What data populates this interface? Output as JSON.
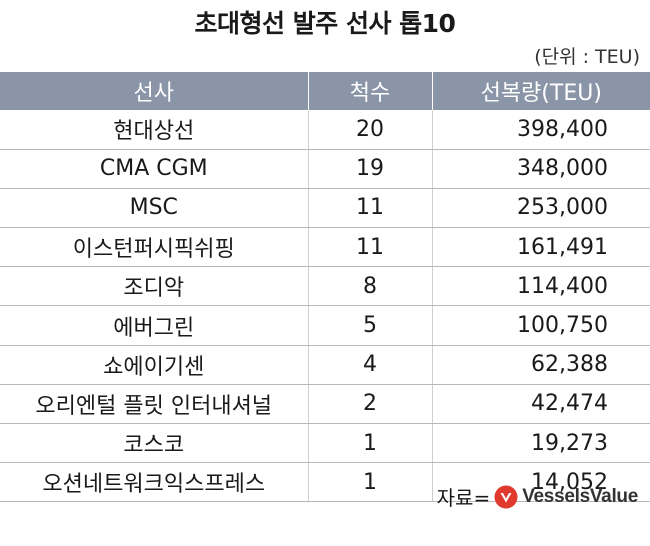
{
  "title": "초대형선 발주 선사 톱10",
  "unit": "(단위 : TEU)",
  "table": {
    "headers": [
      "선사",
      "척수",
      "선복량(TEU)"
    ],
    "rows": [
      [
        "현대상선",
        "20",
        "398,400"
      ],
      [
        "CMA CGM",
        "19",
        "348,000"
      ],
      [
        "MSC",
        "11",
        "253,000"
      ],
      [
        "이스턴퍼시픽쉬핑",
        "11",
        "161,491"
      ],
      [
        "조디악",
        "8",
        "114,400"
      ],
      [
        "에버그린",
        "5",
        "100,750"
      ],
      [
        "쇼에이기센",
        "4",
        "62,388"
      ],
      [
        "오리엔털 플릿 인터내셔널",
        "2",
        "42,474"
      ],
      [
        "코스코",
        "1",
        "19,273"
      ],
      [
        "오션네트워크익스프레스",
        "1",
        "14,052"
      ]
    ]
  },
  "source": {
    "label": "자료=",
    "brand": "VesselsValue",
    "brand_icon": "vesselsvalue-logo-icon"
  },
  "colors": {
    "header_bg": "#8a95a8",
    "header_text": "#ffffff",
    "brand_red": "#e03a2e"
  }
}
